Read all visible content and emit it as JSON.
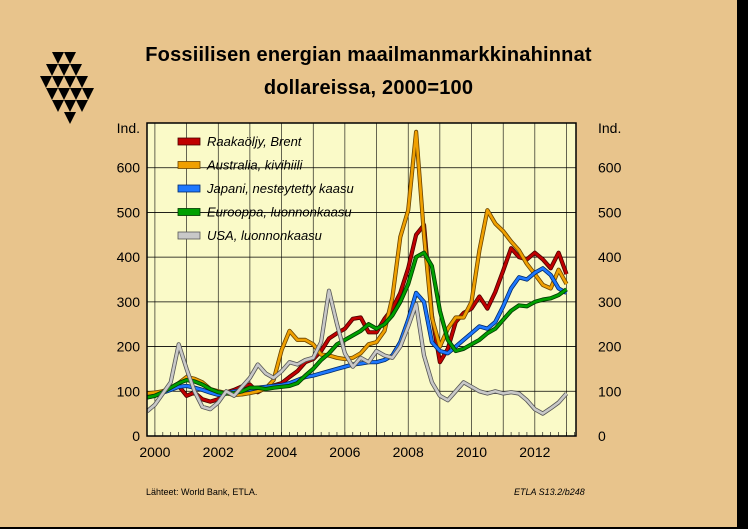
{
  "logo_color": "#000000",
  "chart_data": {
    "type": "line",
    "title": [
      "Fossiilisen energian maailmanmarkkinahinnat",
      "dollareissa, 2000=100"
    ],
    "ylabel_left": "Ind.",
    "ylabel_right": "Ind.",
    "ylim": [
      0,
      700
    ],
    "yticks": [
      0,
      100,
      200,
      300,
      400,
      500,
      600
    ],
    "xlim": [
      1999.75,
      2013.3
    ],
    "xticks": [
      2000,
      2002,
      2004,
      2006,
      2008,
      2010,
      2012
    ],
    "xtick_labels": [
      "2000",
      "2002",
      "2004",
      "2006",
      "2008",
      "2010",
      "2012"
    ],
    "grid": true,
    "legend_position": "top-left",
    "plot_background": "#fafac8",
    "series": [
      {
        "name": "Raakaöljy, Brent",
        "color": "#c00000",
        "x": [
          1999.75,
          2000.0,
          2000.25,
          2000.5,
          2000.75,
          2001.0,
          2001.25,
          2001.5,
          2001.75,
          2002.0,
          2002.25,
          2002.5,
          2002.75,
          2003.0,
          2003.25,
          2003.5,
          2003.75,
          2004.0,
          2004.25,
          2004.5,
          2004.75,
          2005.0,
          2005.25,
          2005.5,
          2005.75,
          2006.0,
          2006.25,
          2006.5,
          2006.75,
          2007.0,
          2007.25,
          2007.5,
          2007.75,
          2008.0,
          2008.25,
          2008.5,
          2008.75,
          2009.0,
          2009.25,
          2009.5,
          2009.75,
          2010.0,
          2010.25,
          2010.5,
          2010.75,
          2011.0,
          2011.25,
          2011.5,
          2011.75,
          2012.0,
          2012.25,
          2012.5,
          2012.75,
          2013.0
        ],
        "values": [
          88,
          95,
          100,
          104,
          112,
          90,
          97,
          82,
          77,
          82,
          97,
          103,
          111,
          115,
          98,
          108,
          113,
          118,
          132,
          145,
          165,
          172,
          190,
          218,
          230,
          240,
          262,
          265,
          232,
          232,
          262,
          285,
          320,
          375,
          450,
          472,
          270,
          165,
          195,
          255,
          275,
          285,
          312,
          285,
          322,
          370,
          420,
          400,
          395,
          410,
          395,
          375,
          410,
          362
        ]
      },
      {
        "name": "Australia, kivihiili",
        "color": "#f0a000",
        "x": [
          1999.75,
          2000.0,
          2000.25,
          2000.5,
          2000.75,
          2001.0,
          2001.25,
          2001.5,
          2001.75,
          2002.0,
          2002.25,
          2002.5,
          2002.75,
          2003.0,
          2003.25,
          2003.5,
          2003.75,
          2004.0,
          2004.25,
          2004.5,
          2004.75,
          2005.0,
          2005.25,
          2005.5,
          2005.75,
          2006.0,
          2006.25,
          2006.5,
          2006.75,
          2007.0,
          2007.25,
          2007.5,
          2007.75,
          2008.0,
          2008.25,
          2008.5,
          2008.75,
          2009.0,
          2009.25,
          2009.5,
          2009.75,
          2010.0,
          2010.25,
          2010.5,
          2010.75,
          2011.0,
          2011.25,
          2011.5,
          2011.75,
          2012.0,
          2012.25,
          2012.5,
          2012.75,
          2013.0
        ],
        "values": [
          95,
          97,
          100,
          108,
          118,
          132,
          128,
          120,
          105,
          100,
          96,
          92,
          93,
          96,
          100,
          106,
          125,
          192,
          235,
          215,
          215,
          205,
          182,
          180,
          175,
          172,
          175,
          185,
          205,
          210,
          235,
          310,
          445,
          505,
          680,
          450,
          265,
          200,
          240,
          265,
          265,
          300,
          415,
          505,
          475,
          458,
          435,
          415,
          385,
          362,
          338,
          330,
          372,
          340
        ]
      },
      {
        "name": "Japani, nesteytetty kaasu",
        "color": "#1e78ff",
        "x": [
          1999.75,
          2000.0,
          2000.25,
          2000.5,
          2000.75,
          2001.0,
          2001.25,
          2001.5,
          2001.75,
          2002.0,
          2002.25,
          2002.5,
          2002.75,
          2003.0,
          2003.25,
          2003.5,
          2003.75,
          2004.0,
          2004.25,
          2004.5,
          2004.75,
          2005.0,
          2005.25,
          2005.5,
          2005.75,
          2006.0,
          2006.25,
          2006.5,
          2006.75,
          2007.0,
          2007.25,
          2007.5,
          2007.75,
          2008.0,
          2008.25,
          2008.5,
          2008.75,
          2009.0,
          2009.25,
          2009.5,
          2009.75,
          2010.0,
          2010.25,
          2010.5,
          2010.75,
          2011.0,
          2011.25,
          2011.5,
          2011.75,
          2012.0,
          2012.25,
          2012.5,
          2012.75,
          2013.0
        ],
        "values": [
          86,
          90,
          97,
          103,
          110,
          112,
          108,
          103,
          97,
          92,
          95,
          100,
          102,
          104,
          108,
          110,
          112,
          114,
          118,
          125,
          132,
          135,
          140,
          145,
          150,
          155,
          160,
          162,
          165,
          165,
          170,
          180,
          210,
          260,
          320,
          300,
          210,
          190,
          185,
          200,
          215,
          230,
          245,
          240,
          255,
          290,
          330,
          355,
          350,
          365,
          375,
          360,
          330,
          320
        ]
      },
      {
        "name": "Eurooppa, luonnonkaasu",
        "color": "#00a000",
        "x": [
          1999.75,
          2000.0,
          2000.25,
          2000.5,
          2000.75,
          2001.0,
          2001.25,
          2001.5,
          2001.75,
          2002.0,
          2002.25,
          2002.5,
          2002.75,
          2003.0,
          2003.25,
          2003.5,
          2003.75,
          2004.0,
          2004.25,
          2004.5,
          2004.75,
          2005.0,
          2005.25,
          2005.5,
          2005.75,
          2006.0,
          2006.25,
          2006.5,
          2006.75,
          2007.0,
          2007.25,
          2007.5,
          2007.75,
          2008.0,
          2008.25,
          2008.5,
          2008.75,
          2009.0,
          2009.25,
          2009.5,
          2009.75,
          2010.0,
          2010.25,
          2010.5,
          2010.75,
          2011.0,
          2011.25,
          2011.5,
          2011.75,
          2012.0,
          2012.25,
          2012.5,
          2012.75,
          2013.0
        ],
        "values": [
          86,
          90,
          98,
          108,
          118,
          125,
          122,
          115,
          105,
          98,
          95,
          96,
          100,
          108,
          108,
          105,
          108,
          110,
          112,
          118,
          135,
          150,
          170,
          185,
          205,
          215,
          225,
          235,
          250,
          240,
          250,
          270,
          300,
          340,
          400,
          410,
          380,
          280,
          215,
          190,
          195,
          205,
          215,
          230,
          240,
          260,
          280,
          292,
          290,
          300,
          305,
          308,
          315,
          328
        ]
      },
      {
        "name": "USA, luonnonkaasu",
        "color": "#c8c8c8",
        "x": [
          1999.75,
          2000.0,
          2000.25,
          2000.5,
          2000.75,
          2001.0,
          2001.25,
          2001.5,
          2001.75,
          2002.0,
          2002.25,
          2002.5,
          2002.75,
          2003.0,
          2003.25,
          2003.5,
          2003.75,
          2004.0,
          2004.25,
          2004.5,
          2004.75,
          2005.0,
          2005.25,
          2005.5,
          2005.75,
          2006.0,
          2006.25,
          2006.5,
          2006.75,
          2007.0,
          2007.25,
          2007.5,
          2007.75,
          2008.0,
          2008.25,
          2008.5,
          2008.75,
          2009.0,
          2009.25,
          2009.5,
          2009.75,
          2010.0,
          2010.25,
          2010.5,
          2010.75,
          2011.0,
          2011.25,
          2011.5,
          2011.75,
          2012.0,
          2012.25,
          2012.5,
          2012.75,
          2013.0
        ],
        "values": [
          55,
          70,
          95,
          120,
          205,
          150,
          100,
          65,
          60,
          75,
          100,
          90,
          110,
          130,
          160,
          140,
          130,
          145,
          165,
          160,
          170,
          175,
          210,
          325,
          250,
          185,
          155,
          175,
          165,
          190,
          180,
          175,
          200,
          245,
          295,
          180,
          120,
          90,
          80,
          100,
          120,
          110,
          100,
          95,
          100,
          95,
          98,
          95,
          80,
          60,
          50,
          62,
          75,
          95
        ]
      }
    ]
  },
  "footer": {
    "source": "Lähteet:  World Bank, ETLA.",
    "code": "ETLA S13.2/b248"
  }
}
